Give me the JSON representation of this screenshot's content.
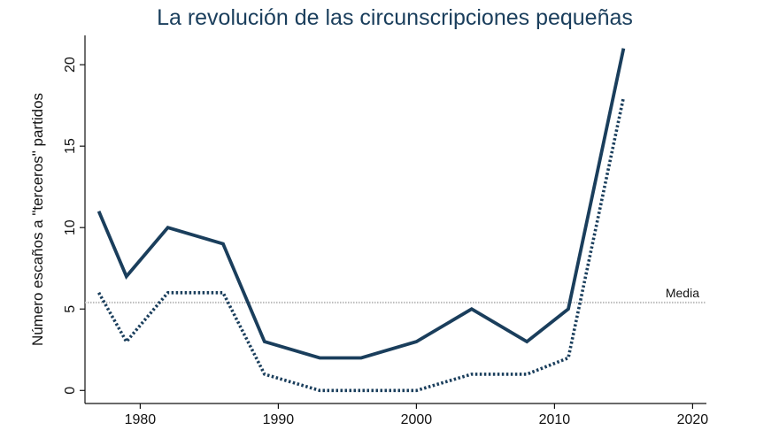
{
  "chart_data": {
    "type": "line",
    "title": "La revolución de las circunscripciones pequeñas",
    "xlabel": "",
    "ylabel": "Número escaños a \"terceros\" partidos",
    "xlim": [
      1976,
      2021
    ],
    "ylim": [
      -0.8,
      21.8
    ],
    "x_ticks": [
      1980,
      1990,
      2000,
      2010,
      2020
    ],
    "y_ticks": [
      0,
      5,
      10,
      15,
      20
    ],
    "grid": false,
    "legend": "none",
    "series": [
      {
        "style": "solid",
        "color": "#1a3e5c",
        "x": [
          1977,
          1979,
          1982,
          1986,
          1989,
          1993,
          1996,
          2000,
          2004,
          2008,
          2011,
          2015
        ],
        "values": [
          11,
          7,
          10,
          9,
          3,
          2,
          2,
          3,
          5,
          3,
          5,
          21
        ]
      },
      {
        "style": "dotted",
        "color": "#1a3e5c",
        "x": [
          1977,
          1979,
          1982,
          1986,
          1989,
          1993,
          1996,
          2000,
          2004,
          2008,
          2011,
          2015
        ],
        "values": [
          6,
          3,
          6,
          6,
          1,
          0,
          0,
          0,
          1,
          1,
          2,
          18
        ]
      }
    ],
    "reference_line": {
      "label": "Media",
      "value": 5.4,
      "color": "#bbbbbb",
      "style": "dotted"
    }
  }
}
